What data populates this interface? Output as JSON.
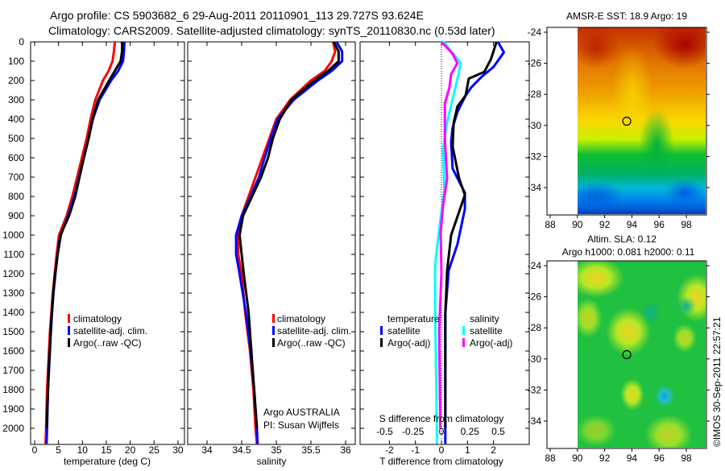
{
  "header": {
    "title_line1": "Argo profile: CS 5903682_6 29-Aug-2011 20110901_113 29.727S 93.624E",
    "title_line2": "Climatology: CARS2009. Satellite-adjusted climatology: synTS_20110830.nc (0.53d later)"
  },
  "colors": {
    "climatology": "#ff0000",
    "satellite": "#0000ff",
    "argo": "#000000",
    "s_satellite": "#00ffff",
    "s_argo": "#ff00ff"
  },
  "legends": {
    "p1": [
      "climatology",
      "satellite-adj. clim.",
      "Argo(..raw -QC)"
    ],
    "p2": [
      "climatology",
      "satellite-adj. clim.",
      "Argo(..raw -QC)"
    ],
    "p3_temperature_title": "temperature",
    "p3_temperature": [
      "satellite",
      "Argo(-adj)"
    ],
    "p3_salinity_title": "salinity",
    "p3_salinity": [
      "satellite",
      "Argo(-adj)"
    ]
  },
  "annotations": {
    "agency": "Argo AUSTRALIA",
    "pi": "PI: Susan Wijffels",
    "copyright": "©IMOS 30-Sep-2011 22:57:21"
  },
  "chart_data": [
    {
      "type": "line",
      "name": "temperature-profile",
      "xlabel": "temperature (deg C)",
      "ylabel": "",
      "xticks": [
        0,
        5,
        10,
        15,
        20,
        25,
        30
      ],
      "yticks": [
        0,
        100,
        200,
        300,
        400,
        500,
        600,
        700,
        800,
        900,
        1000,
        1100,
        1200,
        1300,
        1400,
        1500,
        1600,
        1700,
        1800,
        1900,
        2000
      ],
      "ylim": [
        2083,
        0
      ],
      "series": [
        {
          "name": "climatology",
          "color": "#ff0000",
          "depth": [
            0,
            50,
            100,
            150,
            200,
            300,
            400,
            500,
            600,
            700,
            800,
            900,
            1000,
            1100,
            1200,
            1300,
            1400,
            1500,
            1600,
            1700,
            1800,
            1900,
            2000,
            2080
          ],
          "values": [
            16.8,
            16.6,
            16.3,
            15.5,
            14.3,
            12.7,
            11.7,
            10.9,
            9.9,
            8.9,
            7.9,
            6.7,
            5.1,
            4.6,
            4.2,
            3.8,
            3.5,
            3.2,
            3.0,
            2.8,
            2.6,
            2.5,
            2.4,
            2.3
          ]
        },
        {
          "name": "satellite-adj. clim.",
          "color": "#0000ff",
          "depth": [
            0,
            50,
            100,
            150,
            200,
            300,
            400,
            500,
            600,
            700,
            800,
            900,
            1000,
            1100,
            1200,
            1300,
            1400,
            1500,
            1600,
            1700,
            1800,
            1900,
            2000,
            2080
          ],
          "values": [
            18.8,
            18.7,
            18.5,
            17.5,
            16.0,
            13.6,
            12.2,
            11.3,
            10.3,
            9.3,
            8.3,
            7.0,
            5.5,
            4.8,
            4.35,
            3.95,
            3.65,
            3.4,
            3.2,
            3.0,
            2.8,
            2.7,
            2.6,
            2.5
          ]
        },
        {
          "name": "Argo(..raw -QC)",
          "color": "#000000",
          "depth": [
            0,
            50,
            100,
            150,
            200,
            300,
            400,
            500,
            600,
            700,
            800,
            900,
            1000,
            1100,
            1200,
            1300,
            1400,
            1500,
            1600,
            1700,
            1800,
            1900,
            2000
          ],
          "values": [
            18.3,
            18.3,
            18.0,
            16.8,
            15.6,
            13.3,
            12.1,
            11.3,
            10.3,
            9.4,
            8.5,
            7.2,
            5.4,
            4.8,
            4.3,
            3.9,
            3.6,
            3.35,
            3.15,
            2.95,
            2.8,
            2.65,
            2.55
          ]
        }
      ]
    },
    {
      "type": "line",
      "name": "salinity-profile",
      "xlabel": "salinity",
      "xticks": [
        34,
        34.5,
        35,
        35.5,
        36
      ],
      "ylim": [
        2083,
        0
      ],
      "series": [
        {
          "name": "climatology",
          "color": "#ff0000",
          "depth": [
            0,
            50,
            100,
            150,
            200,
            300,
            400,
            500,
            600,
            700,
            800,
            900,
            1000,
            1100,
            1200,
            1400,
            1600,
            1800,
            2000,
            2080
          ],
          "values": [
            35.82,
            35.85,
            35.8,
            35.7,
            35.5,
            35.2,
            35.0,
            34.9,
            34.8,
            34.7,
            34.6,
            34.5,
            34.45,
            34.45,
            34.5,
            34.55,
            34.62,
            34.67,
            34.7,
            34.72
          ]
        },
        {
          "name": "satellite-adj. clim.",
          "color": "#0000ff",
          "depth": [
            0,
            50,
            100,
            150,
            200,
            300,
            400,
            500,
            600,
            700,
            800,
            900,
            1000,
            1100,
            1200,
            1400,
            1600,
            1800,
            2000,
            2080
          ],
          "values": [
            35.87,
            35.95,
            35.95,
            35.8,
            35.6,
            35.25,
            35.02,
            34.92,
            34.83,
            34.75,
            34.63,
            34.5,
            34.42,
            34.42,
            34.47,
            34.56,
            34.63,
            34.68,
            34.72,
            34.73
          ]
        },
        {
          "name": "Argo(..raw -QC)",
          "color": "#000000",
          "depth": [
            0,
            50,
            100,
            150,
            200,
            300,
            400,
            500,
            600,
            700,
            800,
            900,
            1000,
            1100,
            1200,
            1400,
            1600,
            1800,
            2000
          ],
          "values": [
            35.83,
            35.9,
            35.9,
            35.75,
            35.55,
            35.22,
            35.05,
            34.95,
            34.88,
            34.78,
            34.65,
            34.52,
            34.47,
            34.5,
            34.53,
            34.6,
            34.64,
            34.68,
            34.72
          ]
        }
      ]
    },
    {
      "type": "line",
      "name": "difference-profile",
      "xlabel": "T difference from climatology",
      "xticks": [
        -2,
        -1,
        0,
        1,
        2
      ],
      "x2label": "S difference from climatology",
      "x2ticks": [
        -0.5,
        -0.25,
        0,
        0.25,
        0.5
      ],
      "x2ticklabels": [
        "-0.5",
        "-0.25",
        "0",
        "0.25",
        "0.5"
      ],
      "ylim": [
        2083,
        0
      ],
      "series": [
        {
          "name": "temperature satellite",
          "axis": "T",
          "color": "#0000ff",
          "depth": [
            0,
            54,
            130,
            180,
            235,
            278,
            361,
            444,
            517,
            656,
            781,
            865,
            1045,
            1183,
            1405,
            2080
          ],
          "values": [
            2.17,
            2.4,
            2.0,
            1.55,
            1.15,
            0.93,
            0.62,
            0.43,
            0.37,
            0.43,
            0.9,
            0.9,
            0.62,
            0.28,
            0.15,
            0.15
          ]
        },
        {
          "name": "temperature Argo(-adj)",
          "axis": "T",
          "color": "#000000",
          "depth": [
            0,
            8,
            90,
            155,
            190,
            278,
            333,
            417,
            542,
            708,
            792,
            903,
            1000,
            1183,
            1405,
            2000
          ],
          "values": [
            2.1,
            2.1,
            1.9,
            1.65,
            1.05,
            0.93,
            0.62,
            0.47,
            0.43,
            0.68,
            0.9,
            0.62,
            0.37,
            0.22,
            0.15,
            0.15
          ]
        },
        {
          "name": "salinity satellite",
          "axis": "S",
          "color": "#00ffff",
          "depth": [
            0,
            5,
            111,
            194,
            292,
            417,
            556,
            764,
            972,
            1153,
            1375,
            1800,
            2080
          ],
          "values": [
            -0.01,
            0.026,
            0.17,
            0.14,
            0.1,
            0.05,
            0.014,
            0.026,
            -0.02,
            -0.056,
            -0.056,
            -0.045,
            -0.04
          ]
        },
        {
          "name": "salinity Argo(-adj)",
          "axis": "S",
          "color": "#ff00ff",
          "depth": [
            0,
            61,
            111,
            167,
            236,
            319,
            500,
            708,
            847,
            986,
            1194,
            1500,
            2000
          ],
          "values": [
            0.0,
            0.097,
            0.14,
            0.085,
            0.07,
            0.03,
            0.03,
            0.05,
            0.014,
            -0.007,
            0.0,
            -0.02,
            -0.01
          ]
        }
      ]
    },
    {
      "type": "heatmap",
      "name": "sst-map",
      "title": "AMSR-E SST: 18.9 Argo: 19",
      "xticks": [
        88,
        90,
        92,
        94,
        96,
        98
      ],
      "yticks": [
        -24,
        -26,
        -28,
        -30,
        -32,
        -34
      ],
      "yticklabels": [
        "-24",
        "-26",
        "-28",
        "-30",
        "-32",
        "-34"
      ],
      "xlim": [
        87.8,
        99.5
      ],
      "ylim": [
        -35.7,
        -23.7
      ],
      "argo_position": {
        "lon": 93.624,
        "lat": -29.727
      }
    },
    {
      "type": "heatmap",
      "name": "sla-map",
      "title": "Altim. SLA: 0.12",
      "subtitle": "Argo h1000: 0.081 h2000: 0.11",
      "xticks": [
        88,
        90,
        92,
        94,
        96,
        98
      ],
      "yticks": [
        -24,
        -26,
        -28,
        -30,
        -32,
        -34
      ],
      "yticklabels": [
        "-24",
        "-26",
        "-28",
        "-30",
        "-32",
        "-34"
      ],
      "xlim": [
        87.8,
        99.5
      ],
      "ylim": [
        -35.7,
        -23.7
      ],
      "argo_position": {
        "lon": 93.624,
        "lat": -29.727
      }
    }
  ]
}
